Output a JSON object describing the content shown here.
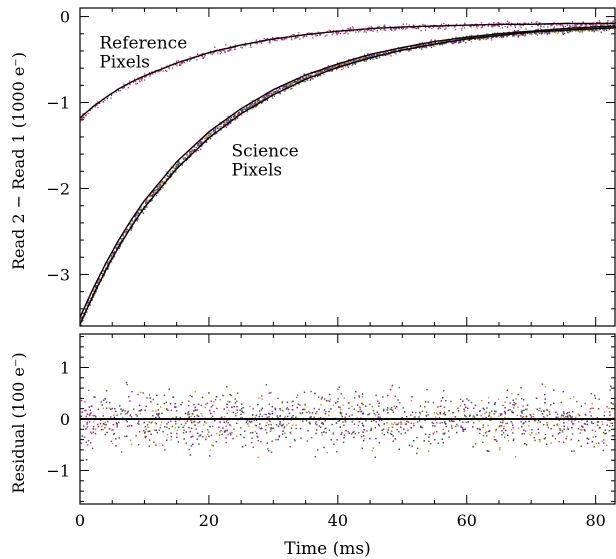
{
  "chart_data": [
    {
      "type": "scatter",
      "panel": "top",
      "ylabel": "Read 2 − Read 1 (1000 e⁻)",
      "xlim": [
        0,
        83
      ],
      "ylim": [
        -3.6,
        0.1
      ],
      "x_ticks": [
        0,
        20,
        40,
        60,
        80
      ],
      "y_ticks": [
        0,
        -1,
        -2,
        -3
      ],
      "y_tick_labels": [
        "0",
        "−1",
        "−2",
        "−3"
      ],
      "grid": false,
      "annotations": [
        {
          "lines": [
            "Reference",
            "Pixels"
          ],
          "x": 3,
          "y": -0.37
        },
        {
          "lines": [
            "Science",
            "Pixels"
          ],
          "x": 23.5,
          "y": -1.63
        }
      ],
      "series": [
        {
          "x": [
            0,
            2,
            4,
            6,
            8,
            10,
            15,
            20,
            25,
            30,
            35,
            40,
            45,
            50,
            55,
            60,
            65,
            70,
            75,
            80,
            83
          ],
          "y": [
            -1.18,
            -1.05,
            -0.94,
            -0.84,
            -0.76,
            -0.69,
            -0.54,
            -0.42,
            -0.33,
            -0.26,
            -0.21,
            -0.17,
            -0.14,
            -0.12,
            -0.11,
            -0.1,
            -0.09,
            -0.09,
            -0.08,
            -0.08,
            -0.08
          ],
          "color": "#cc2266"
        },
        {
          "x": [
            0,
            2,
            4,
            6,
            8,
            10,
            15,
            20,
            25,
            30,
            35,
            40,
            45,
            50,
            55,
            60,
            65,
            70,
            75,
            80,
            83
          ],
          "y": [
            -3.5,
            -3.17,
            -2.87,
            -2.6,
            -2.36,
            -2.14,
            -1.69,
            -1.34,
            -1.07,
            -0.85,
            -0.68,
            -0.55,
            -0.44,
            -0.36,
            -0.29,
            -0.24,
            -0.2,
            -0.17,
            -0.14,
            -0.12,
            -0.11
          ],
          "color": "#6a2a9a"
        },
        {
          "x": [
            0,
            2,
            4,
            6,
            8,
            10,
            15,
            20,
            25,
            30,
            35,
            40,
            45,
            50,
            55,
            60,
            65,
            70,
            75,
            80,
            83
          ],
          "y": [
            -3.58,
            -3.25,
            -2.95,
            -2.68,
            -2.44,
            -2.22,
            -1.77,
            -1.41,
            -1.13,
            -0.91,
            -0.73,
            -0.59,
            -0.48,
            -0.39,
            -0.32,
            -0.26,
            -0.22,
            -0.18,
            -0.16,
            -0.14,
            -0.13
          ],
          "color": "#d98a2a"
        }
      ],
      "marker_colors": [
        "#6a2a9a",
        "#3a7a3a",
        "#d98a2a",
        "#c0287a",
        "#2a3a8a",
        "#7a4a20"
      ]
    },
    {
      "type": "scatter",
      "panel": "bottom",
      "xlabel": "Time (ms)",
      "ylabel": "Residual (100 e⁻)",
      "xlim": [
        0,
        83
      ],
      "ylim": [
        -1.65,
        1.65
      ],
      "x_ticks": [
        0,
        20,
        40,
        60,
        80
      ],
      "x_tick_labels": [
        "0",
        "20",
        "40",
        "60",
        "80"
      ],
      "y_ticks": [
        1,
        0,
        -1
      ],
      "y_tick_labels": [
        "1",
        "0",
        "−1"
      ],
      "grid": false,
      "reference_line_y": 0,
      "residual_spread_sd": 0.38,
      "marker_colors": [
        "#6a2a9a",
        "#3a7a3a",
        "#d98a2a",
        "#c0287a",
        "#2a3a8a",
        "#7a4a20"
      ]
    }
  ]
}
